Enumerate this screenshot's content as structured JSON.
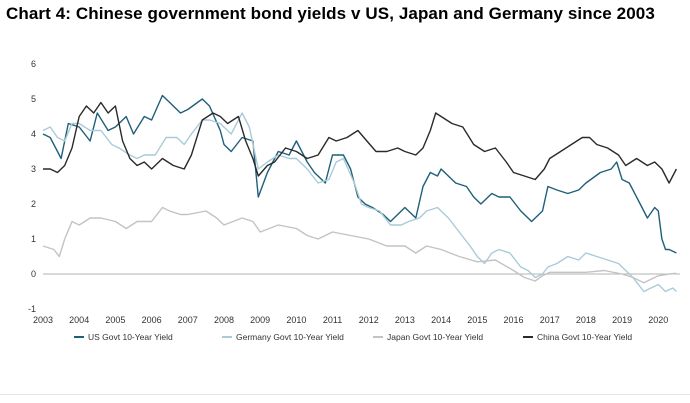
{
  "chart_data": {
    "type": "line",
    "title": "Chart 4: Chinese government bond yields v US, Japan and Germany since 2003",
    "xlabel": "",
    "ylabel": "",
    "xlim": [
      2003,
      2020.6
    ],
    "ylim": [
      -1,
      6
    ],
    "x_ticks": [
      "2003",
      "2004",
      "2005",
      "2006",
      "2007",
      "2008",
      "2009",
      "2010",
      "2011",
      "2012",
      "2013",
      "2014",
      "2015",
      "2016",
      "2017",
      "2018",
      "2019",
      "2020"
    ],
    "y_ticks": [
      "-1",
      "0",
      "1",
      "2",
      "3",
      "4",
      "5",
      "6"
    ],
    "legend_position": "bottom",
    "grid": false,
    "series": [
      {
        "name": "US Govt 10-Year Yield",
        "color": "#1f5f7a",
        "x": [
          2003.0,
          2003.2,
          2003.4,
          2003.5,
          2003.7,
          2004.0,
          2004.3,
          2004.5,
          2004.8,
          2005.0,
          2005.3,
          2005.5,
          2005.8,
          2006.0,
          2006.3,
          2006.5,
          2006.8,
          2007.0,
          2007.4,
          2007.6,
          2007.9,
          2008.0,
          2008.2,
          2008.5,
          2008.8,
          2008.95,
          2009.2,
          2009.5,
          2009.8,
          2010.0,
          2010.3,
          2010.5,
          2010.8,
          2011.0,
          2011.3,
          2011.5,
          2011.7,
          2011.9,
          2012.1,
          2012.4,
          2012.6,
          2012.8,
          2013.0,
          2013.3,
          2013.5,
          2013.7,
          2013.9,
          2014.0,
          2014.4,
          2014.7,
          2014.9,
          2015.1,
          2015.4,
          2015.6,
          2015.9,
          2016.2,
          2016.5,
          2016.8,
          2016.95,
          2017.2,
          2017.5,
          2017.8,
          2018.0,
          2018.4,
          2018.7,
          2018.85,
          2019.0,
          2019.2,
          2019.5,
          2019.7,
          2019.9,
          2020.0,
          2020.1,
          2020.2,
          2020.3,
          2020.5
        ],
        "y": [
          4.0,
          3.9,
          3.5,
          3.3,
          4.3,
          4.2,
          3.8,
          4.6,
          4.1,
          4.2,
          4.5,
          4.0,
          4.5,
          4.4,
          5.1,
          4.9,
          4.6,
          4.7,
          5.0,
          4.8,
          4.1,
          3.7,
          3.5,
          3.9,
          3.8,
          2.2,
          2.9,
          3.5,
          3.4,
          3.8,
          3.2,
          2.9,
          2.6,
          3.4,
          3.4,
          3.0,
          2.2,
          2.0,
          1.9,
          1.7,
          1.5,
          1.7,
          1.9,
          1.6,
          2.5,
          2.9,
          2.8,
          3.0,
          2.6,
          2.5,
          2.2,
          2.0,
          2.3,
          2.2,
          2.2,
          1.8,
          1.5,
          1.8,
          2.5,
          2.4,
          2.3,
          2.4,
          2.6,
          2.9,
          3.0,
          3.2,
          2.7,
          2.6,
          2.0,
          1.6,
          1.9,
          1.8,
          1.0,
          0.7,
          0.7,
          0.6
        ]
      },
      {
        "name": "Germany Govt 10-Year Yield",
        "color": "#a9cbd9",
        "x": [
          2003.0,
          2003.2,
          2003.4,
          2003.6,
          2003.8,
          2004.0,
          2004.3,
          2004.6,
          2004.9,
          2005.1,
          2005.4,
          2005.6,
          2005.8,
          2006.1,
          2006.4,
          2006.7,
          2006.9,
          2007.1,
          2007.4,
          2007.6,
          2007.9,
          2008.2,
          2008.5,
          2008.7,
          2008.95,
          2009.2,
          2009.5,
          2009.8,
          2010.0,
          2010.3,
          2010.6,
          2010.9,
          2011.1,
          2011.3,
          2011.6,
          2011.8,
          2012.0,
          2012.3,
          2012.6,
          2012.9,
          2013.1,
          2013.4,
          2013.6,
          2013.9,
          2014.2,
          2014.5,
          2014.8,
          2015.0,
          2015.2,
          2015.4,
          2015.6,
          2015.9,
          2016.2,
          2016.4,
          2016.6,
          2016.8,
          2016.95,
          2017.2,
          2017.5,
          2017.8,
          2018.0,
          2018.3,
          2018.6,
          2018.9,
          2019.1,
          2019.3,
          2019.6,
          2019.8,
          2020.0,
          2020.2,
          2020.4,
          2020.5
        ],
        "y": [
          4.1,
          4.2,
          3.9,
          3.8,
          4.3,
          4.3,
          4.1,
          4.1,
          3.7,
          3.6,
          3.4,
          3.3,
          3.4,
          3.4,
          3.9,
          3.9,
          3.7,
          4.0,
          4.4,
          4.4,
          4.3,
          4.0,
          4.6,
          4.2,
          3.0,
          3.2,
          3.4,
          3.3,
          3.3,
          3.0,
          2.6,
          2.7,
          3.2,
          3.3,
          2.6,
          2.0,
          1.9,
          1.8,
          1.4,
          1.4,
          1.5,
          1.6,
          1.8,
          1.9,
          1.6,
          1.2,
          0.8,
          0.5,
          0.3,
          0.6,
          0.7,
          0.6,
          0.2,
          0.1,
          -0.1,
          0.0,
          0.2,
          0.3,
          0.5,
          0.4,
          0.6,
          0.5,
          0.4,
          0.3,
          0.1,
          -0.1,
          -0.5,
          -0.4,
          -0.3,
          -0.5,
          -0.4,
          -0.5
        ]
      },
      {
        "name": "Japan Govt 10-Year Yield",
        "color": "#c3c3c3",
        "x": [
          2003.0,
          2003.3,
          2003.45,
          2003.6,
          2003.8,
          2004.0,
          2004.3,
          2004.6,
          2005.0,
          2005.3,
          2005.6,
          2006.0,
          2006.3,
          2006.5,
          2006.8,
          2007.0,
          2007.5,
          2007.8,
          2008.0,
          2008.5,
          2008.8,
          2009.0,
          2009.5,
          2010.0,
          2010.3,
          2010.6,
          2011.0,
          2011.5,
          2012.0,
          2012.5,
          2013.0,
          2013.3,
          2013.6,
          2014.0,
          2014.5,
          2015.0,
          2015.5,
          2016.0,
          2016.3,
          2016.6,
          2016.8,
          2017.0,
          2017.5,
          2018.0,
          2018.5,
          2019.0,
          2019.3,
          2019.6,
          2020.0,
          2020.3,
          2020.5
        ],
        "y": [
          0.8,
          0.7,
          0.5,
          1.0,
          1.5,
          1.4,
          1.6,
          1.6,
          1.5,
          1.3,
          1.5,
          1.5,
          1.9,
          1.8,
          1.7,
          1.7,
          1.8,
          1.6,
          1.4,
          1.6,
          1.5,
          1.2,
          1.4,
          1.3,
          1.1,
          1.0,
          1.2,
          1.1,
          1.0,
          0.8,
          0.8,
          0.6,
          0.8,
          0.7,
          0.5,
          0.35,
          0.4,
          0.1,
          -0.1,
          -0.2,
          -0.05,
          0.05,
          0.05,
          0.05,
          0.1,
          0.0,
          -0.1,
          -0.25,
          -0.05,
          0.0,
          0.02
        ]
      },
      {
        "name": "China Govt 10-Year Yield",
        "color": "#2a2a2a",
        "x": [
          2003.0,
          2003.2,
          2003.4,
          2003.6,
          2003.8,
          2004.0,
          2004.2,
          2004.4,
          2004.6,
          2004.8,
          2005.0,
          2005.2,
          2005.4,
          2005.6,
          2005.8,
          2006.0,
          2006.3,
          2006.6,
          2006.9,
          2007.1,
          2007.4,
          2007.7,
          2007.9,
          2008.1,
          2008.4,
          2008.6,
          2008.8,
          2008.95,
          2009.2,
          2009.4,
          2009.7,
          2010.0,
          2010.3,
          2010.6,
          2010.9,
          2011.1,
          2011.4,
          2011.7,
          2011.95,
          2012.2,
          2012.5,
          2012.8,
          2013.0,
          2013.3,
          2013.5,
          2013.7,
          2013.85,
          2014.0,
          2014.3,
          2014.6,
          2014.9,
          2015.2,
          2015.5,
          2015.8,
          2016.0,
          2016.3,
          2016.6,
          2016.85,
          2017.0,
          2017.3,
          2017.6,
          2017.9,
          2018.1,
          2018.3,
          2018.6,
          2018.9,
          2019.1,
          2019.4,
          2019.7,
          2019.9,
          2020.1,
          2020.3,
          2020.5
        ],
        "y": [
          3.0,
          3.0,
          2.9,
          3.1,
          3.6,
          4.5,
          4.8,
          4.6,
          4.9,
          4.6,
          4.8,
          3.8,
          3.3,
          3.1,
          3.2,
          3.0,
          3.3,
          3.1,
          3.0,
          3.4,
          4.4,
          4.6,
          4.5,
          4.3,
          4.5,
          3.8,
          3.3,
          2.8,
          3.1,
          3.2,
          3.6,
          3.5,
          3.3,
          3.4,
          3.9,
          3.8,
          3.9,
          4.1,
          3.8,
          3.5,
          3.5,
          3.6,
          3.5,
          3.4,
          3.6,
          4.1,
          4.6,
          4.5,
          4.3,
          4.2,
          3.7,
          3.5,
          3.6,
          3.2,
          2.9,
          2.8,
          2.7,
          3.0,
          3.3,
          3.5,
          3.7,
          3.9,
          3.9,
          3.7,
          3.6,
          3.4,
          3.1,
          3.3,
          3.1,
          3.2,
          3.0,
          2.6,
          3.0
        ]
      }
    ]
  }
}
